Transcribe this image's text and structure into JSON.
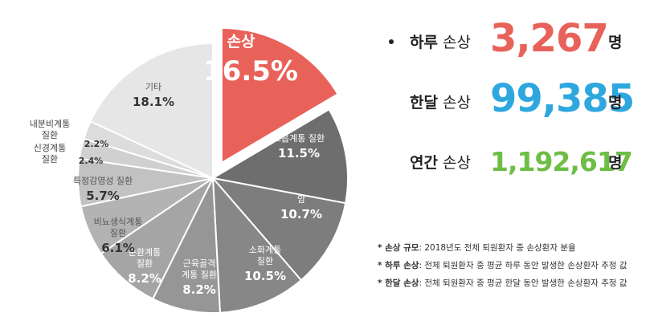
{
  "chart_data": {
    "type": "pie",
    "slices": [
      {
        "label": "손상",
        "value": 16.5,
        "color": "#e8625a",
        "highlight": true
      },
      {
        "label": "호흡계통 질환",
        "value": 11.5,
        "color": "#6e6e6e"
      },
      {
        "label": "암",
        "value": 10.7,
        "color": "#7d7d7d"
      },
      {
        "label": "소화계통 질환",
        "value": 10.5,
        "color": "#878787"
      },
      {
        "label": "근육골격 계통 질환",
        "value": 8.2,
        "color": "#969696"
      },
      {
        "label": "순환계통 질환",
        "value": 8.2,
        "color": "#a5a5a5"
      },
      {
        "label": "비뇨생식계통 질환",
        "value": 6.1,
        "color": "#b3b3b3"
      },
      {
        "label": "특정감염성 질환",
        "value": 5.7,
        "color": "#c2c2c2"
      },
      {
        "label": "신경계통 질환",
        "value": 2.4,
        "color": "#d0d0d0"
      },
      {
        "label": "내분비계통 질환",
        "value": 2.2,
        "color": "#dcdcdc"
      },
      {
        "label": "기타",
        "value": 18.1,
        "color": "#e6e6e6"
      }
    ],
    "value_labels": [
      "16.5%",
      "11.5%",
      "10.7%",
      "10.5%",
      "8.2%",
      "8.2%",
      "6.1%",
      "5.7%",
      "2.4%",
      "2.2%",
      "18.1%"
    ]
  },
  "stats": [
    {
      "bold": "하루",
      "rest": " 손상",
      "number": "3,267",
      "unit": "명",
      "color": "#e8625a"
    },
    {
      "bold": "한달",
      "rest": " 손상",
      "number": "99,385",
      "unit": "명",
      "color": "#2ea7df"
    },
    {
      "bold": "연간",
      "rest": " 손상",
      "number": "1,192,617",
      "unit": "명",
      "color": "#6dbe45"
    }
  ],
  "notes": [
    {
      "bold": "* 손상 규모",
      "text": ": 2018년도 전체 퇴원환자 중 손상환자 분율"
    },
    {
      "bold": "* 하루 손상",
      "text": ": 전체 퇴원환자 중 평균 하루 동안 발생한 손상환자 추정 값"
    },
    {
      "bold": "* 한달 손상",
      "text": ": 전체 퇴원환자 중 평균 한달 동안 발생한 손상환자 추정 값"
    }
  ]
}
